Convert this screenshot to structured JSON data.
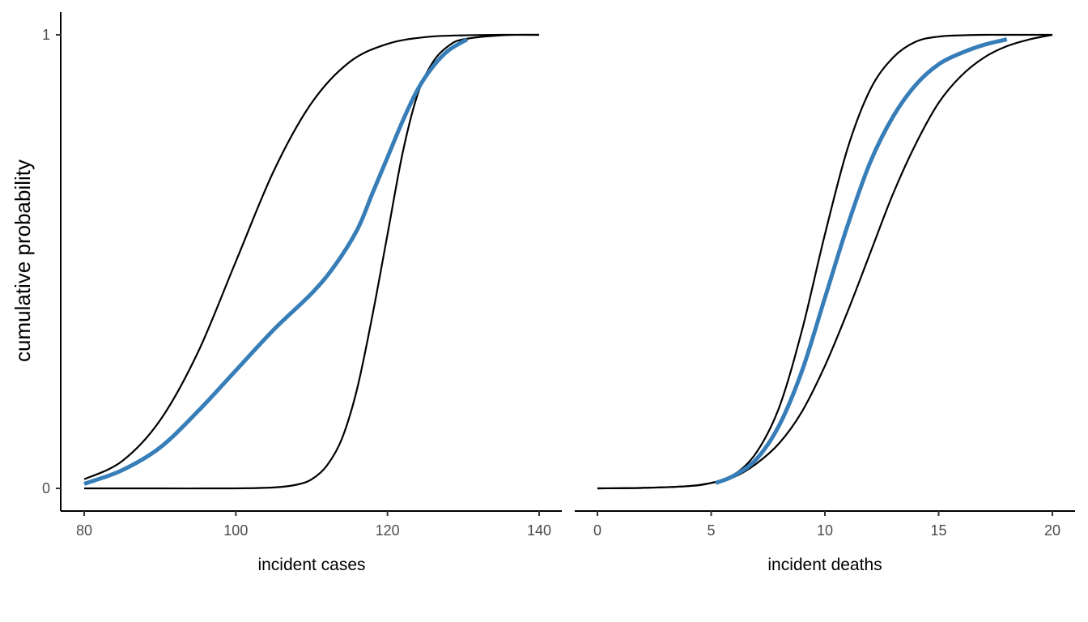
{
  "chart_data": {
    "type": "line",
    "ylabel": "cumulative probability",
    "ylim": [
      0,
      1
    ],
    "yticks": [
      0,
      1
    ],
    "y_tick_labels": [
      "0",
      "1"
    ],
    "grid": false,
    "legend": "none",
    "colors": {
      "highlight": "#377eb8",
      "reference": "#000000",
      "axis": "#000000",
      "tick_text": "#4d4d4d"
    },
    "panels": [
      {
        "xlabel": "incident cases",
        "xlim": [
          80,
          140
        ],
        "xticks": [
          80,
          100,
          120,
          140
        ],
        "x_tick_labels": [
          "80",
          "100",
          "120",
          "140"
        ],
        "series": [
          {
            "color": "#000000",
            "x": [
              80,
              85,
              90,
              95,
              100,
              105,
              110,
              115,
              120,
              125,
              130,
              135,
              140
            ],
            "y": [
              0.02,
              0.06,
              0.15,
              0.3,
              0.5,
              0.7,
              0.85,
              0.94,
              0.98,
              0.995,
              0.999,
              1.0,
              1.0
            ]
          },
          {
            "color": "#000000",
            "x": [
              80,
              90,
              100,
              105,
              108,
              110,
              112,
              114,
              116,
              118,
              120,
              122,
              124,
              126,
              128,
              130,
              135,
              140
            ],
            "y": [
              0,
              0,
              0,
              0.002,
              0.008,
              0.02,
              0.05,
              0.11,
              0.22,
              0.38,
              0.56,
              0.74,
              0.87,
              0.94,
              0.975,
              0.99,
              0.999,
              1.0
            ]
          },
          {
            "color": "#377eb8",
            "x": [
              80,
              85,
              90,
              95,
              100,
              105,
              110,
              113,
              116,
              118,
              120,
              122,
              124,
              126,
              128,
              130.5
            ],
            "y": [
              0.01,
              0.04,
              0.09,
              0.17,
              0.26,
              0.35,
              0.43,
              0.49,
              0.57,
              0.65,
              0.73,
              0.81,
              0.88,
              0.93,
              0.965,
              0.99
            ]
          }
        ]
      },
      {
        "xlabel": "incident deaths",
        "xlim": [
          0,
          20
        ],
        "xticks": [
          0,
          5,
          10,
          15,
          20
        ],
        "x_tick_labels": [
          "0",
          "5",
          "10",
          "15",
          "20"
        ],
        "series": [
          {
            "color": "#000000",
            "x": [
              0,
              2,
              4,
              5,
              6,
              7,
              8,
              9,
              10,
              11,
              12,
              13,
              14,
              15,
              16,
              17,
              18,
              20
            ],
            "y": [
              0,
              0.001,
              0.005,
              0.012,
              0.03,
              0.08,
              0.18,
              0.35,
              0.56,
              0.75,
              0.88,
              0.95,
              0.985,
              0.996,
              0.999,
              1.0,
              1.0,
              1.0
            ]
          },
          {
            "color": "#000000",
            "x": [
              0,
              2,
              4,
              5,
              6,
              7,
              8,
              9,
              10,
              11,
              12,
              13,
              14,
              15,
              16,
              17,
              18,
              19,
              20
            ],
            "y": [
              0,
              0.001,
              0.005,
              0.012,
              0.025,
              0.055,
              0.1,
              0.17,
              0.27,
              0.39,
              0.52,
              0.65,
              0.76,
              0.85,
              0.91,
              0.95,
              0.975,
              0.99,
              1.0
            ]
          },
          {
            "color": "#377eb8",
            "x": [
              5.2,
              6,
              7,
              8,
              9,
              10,
              11,
              12,
              13,
              14,
              15,
              16,
              17,
              18
            ],
            "y": [
              0.012,
              0.028,
              0.065,
              0.14,
              0.26,
              0.42,
              0.58,
              0.72,
              0.82,
              0.89,
              0.935,
              0.96,
              0.978,
              0.99
            ]
          }
        ]
      }
    ]
  }
}
